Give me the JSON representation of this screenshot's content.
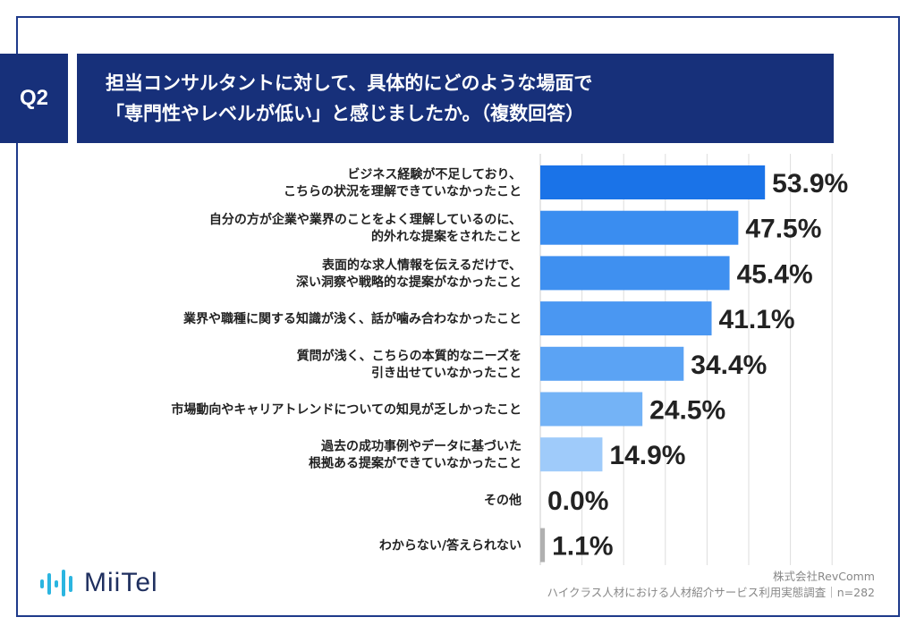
{
  "header": {
    "badge": "Q2",
    "title_line1": "担当コンサルタントに対して、具体的にどのような場面で",
    "title_line2": "「専門性やレベルが低い」と感じましたか。（複数回答）"
  },
  "chart_data": {
    "type": "bar",
    "orientation": "horizontal",
    "categories": [
      [
        "ビジネス経験が不足しており、",
        "こちらの状況を理解できていなかったこと"
      ],
      [
        "自分の方が企業や業界のことをよく理解しているのに、",
        "的外れな提案をされたこと"
      ],
      [
        "表面的な求人情報を伝えるだけで、",
        "深い洞察や戦略的な提案がなかったこと"
      ],
      [
        "業界や職種に関する知識が浅く、話が噛み合わなかったこと"
      ],
      [
        "質問が浅く、こちらの本質的なニーズを",
        "引き出せていなかったこと"
      ],
      [
        "市場動向やキャリアトレンドについての知見が乏しかったこと"
      ],
      [
        "過去の成功事例やデータに基づいた",
        "根拠ある提案ができていなかったこと"
      ],
      [
        "その他"
      ],
      [
        "わからない/答えられない"
      ]
    ],
    "values": [
      53.9,
      47.5,
      45.4,
      41.1,
      34.4,
      24.5,
      14.9,
      0.0,
      1.1
    ],
    "value_labels": [
      "53.9%",
      "47.5%",
      "45.4%",
      "41.1%",
      "34.4%",
      "24.5%",
      "14.9%",
      "0.0%",
      "1.1%"
    ],
    "bar_colors": [
      "#1a73e8",
      "#3a8df0",
      "#3f90f0",
      "#4a97f2",
      "#5ba3f4",
      "#74b3f6",
      "#9fcbfa",
      "#9fcbfa",
      "#b0b0b0"
    ],
    "xlim": [
      0,
      100
    ],
    "grid": true
  },
  "logo": {
    "text": "MiiTel",
    "icon": "sound-wave-icon"
  },
  "source": {
    "line1": "株式会社RevComm",
    "line2": "ハイクラス人材における人材紹介サービス利用実態調査｜n=282"
  }
}
